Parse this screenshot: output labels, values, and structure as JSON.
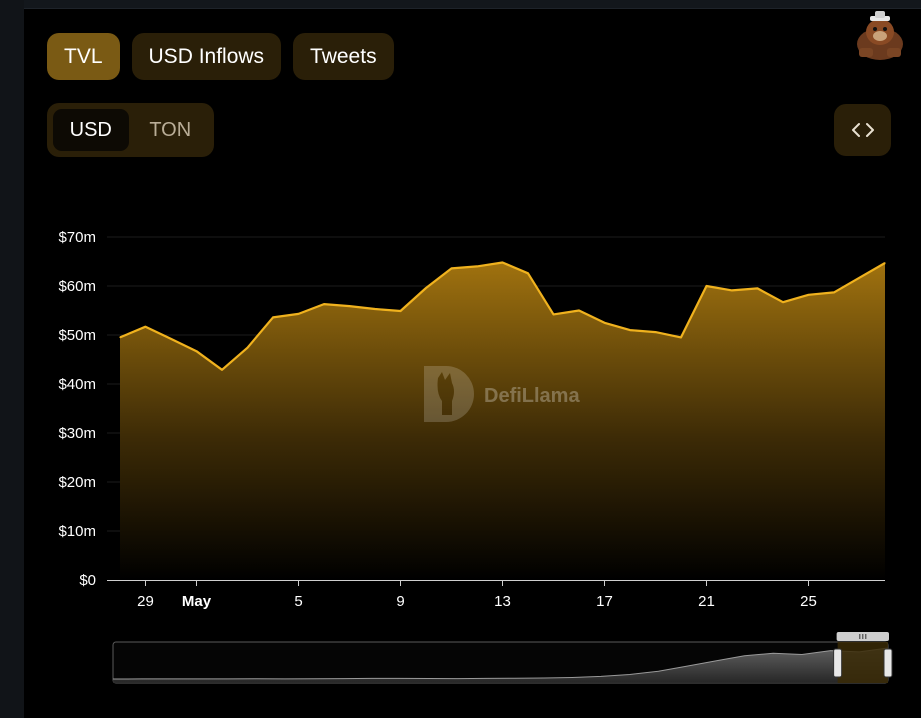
{
  "tabs": [
    {
      "label": "TVL",
      "active": true
    },
    {
      "label": "USD Inflows",
      "active": false
    },
    {
      "label": "Tweets",
      "active": false
    }
  ],
  "currency": [
    {
      "label": "USD",
      "active": true
    },
    {
      "label": "TON",
      "active": false
    }
  ],
  "icons": {
    "embed": "code-brackets-icon",
    "mascot": "llama-mascot-icon",
    "watermark": "defillama-logo-icon"
  },
  "watermark": {
    "text": "DefiLlama"
  },
  "colors": {
    "accent": "#f0b21e",
    "tab_active": "#7a5a14",
    "tab_bg": "#2a1f08",
    "background": "#000000"
  },
  "chart_data": {
    "type": "area",
    "title": "",
    "xlabel": "",
    "ylabel": "",
    "x": [
      "Apr 28",
      "Apr 29",
      "Apr 30",
      "May 1",
      "May 2",
      "May 3",
      "May 4",
      "May 5",
      "May 6",
      "May 7",
      "May 8",
      "May 9",
      "May 10",
      "May 11",
      "May 12",
      "May 13",
      "May 14",
      "May 15",
      "May 16",
      "May 17",
      "May 18",
      "May 19",
      "May 20",
      "May 21",
      "May 22",
      "May 23",
      "May 24",
      "May 25",
      "May 26",
      "May 27",
      "May 28"
    ],
    "series": [
      {
        "values": [
          49.5,
          51.7,
          49.2,
          46.7,
          42.9,
          47.4,
          53.6,
          54.3,
          56.3,
          55.9,
          55.3,
          54.9,
          59.6,
          63.6,
          64.0,
          64.8,
          62.6,
          54.2,
          55.0,
          52.5,
          51.0,
          50.6,
          49.5,
          60.0,
          59.1,
          59.5,
          56.7,
          58.2,
          58.7,
          61.7,
          64.7
        ]
      }
    ],
    "ylim": [
      0,
      70
    ],
    "y_unit": "millions USD",
    "y_ticks": [
      "$0",
      "$10m",
      "$20m",
      "$30m",
      "$40m",
      "$50m",
      "$60m",
      "$70m"
    ],
    "x_ticks": [
      {
        "label": "29",
        "x": "Apr 29",
        "bold": false
      },
      {
        "label": "May",
        "x": "May 1",
        "bold": true
      },
      {
        "label": "5",
        "x": "May 5",
        "bold": false
      },
      {
        "label": "9",
        "x": "May 9",
        "bold": false
      },
      {
        "label": "13",
        "x": "May 13",
        "bold": false
      },
      {
        "label": "17",
        "x": "May 17",
        "bold": false
      },
      {
        "label": "21",
        "x": "May 21",
        "bold": false
      },
      {
        "label": "25",
        "x": "May 25",
        "bold": false
      }
    ],
    "grid": true,
    "legend": "none",
    "range_selector": {
      "overview_values": [
        0.0,
        0.05,
        0.08,
        0.1,
        0.1,
        0.15,
        0.1,
        0.2,
        0.3,
        0.5,
        0.5,
        0.4,
        0.3,
        0.45,
        0.6,
        0.8,
        1.2,
        2.0,
        3.5,
        6.0,
        10.0,
        14.0,
        18.0,
        20.0,
        19.0,
        22.0,
        21.0,
        24.0
      ],
      "selected_start_fraction": 0.935,
      "selected_end_fraction": 1.0
    }
  }
}
